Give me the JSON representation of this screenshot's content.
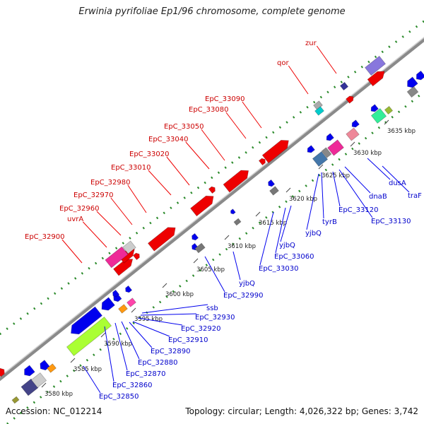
{
  "title": "Erwinia pyrifoliae Ep1/96 chromosome, complete genome",
  "footer": {
    "accession": "Accession: NC_012214",
    "stats": "Topology: circular; Length: 4,026,322 bp; Genes: 3,742"
  },
  "colors": {
    "forward_gene": "#ee0000",
    "reverse_gene": "#0000ee",
    "label_forward": "#cc0000",
    "label_reverse": "#0000cc",
    "backbone": "#888888",
    "dotted_track": "#2a8a2a"
  },
  "kbp_labels": [
    "3580 kbp",
    "3585 kbp",
    "3590 kbp",
    "3595 kbp",
    "3600 kbp",
    "3605 kbp",
    "3610 kbp",
    "3615 kbp",
    "3620 kbp",
    "3625 kbp",
    "3630 kbp",
    "3635 kbp"
  ],
  "forward_labels": [
    "zur",
    "qor",
    "EpC_33090",
    "EpC_33080",
    "EpC_33050",
    "EpC_33040",
    "EpC_33020",
    "EpC_33010",
    "EpC_32980",
    "EpC_32970",
    "EpC_32960",
    "uvrA",
    "EpC_32900"
  ],
  "reverse_labels": [
    "traF",
    "dusA",
    "EpC_33130",
    "EpC_33120",
    "dnaB",
    "tyrB",
    "yjbQ",
    "yjbQ",
    "EpC_33060",
    "EpC_33030",
    "yjbQ",
    "EpC_32990",
    "ssb",
    "EpC_32930",
    "EpC_32920",
    "EpC_32910",
    "EpC_32890",
    "EpC_32880",
    "EpC_32870",
    "EpC_32860",
    "EpC_32850"
  ]
}
